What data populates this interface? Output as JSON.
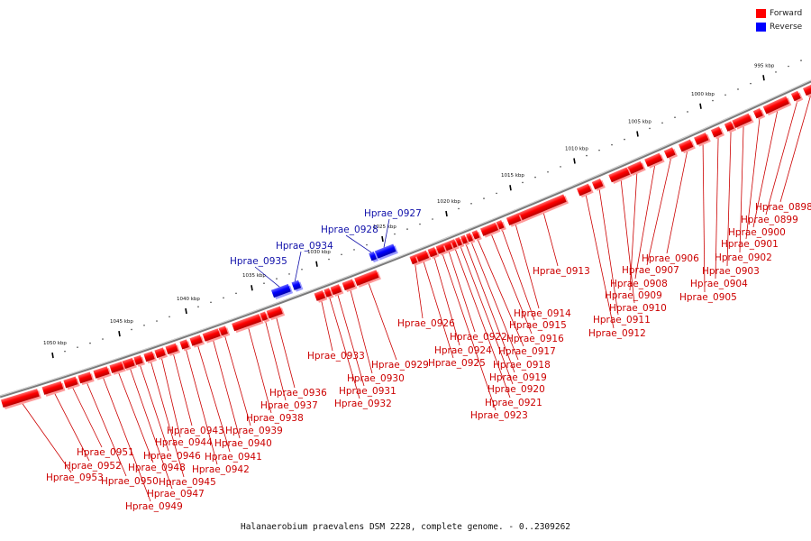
{
  "colors": {
    "forward": "#ff0000",
    "reverse": "#0000ff",
    "label_forward": "#cc0000",
    "label_reverse": "#1111aa",
    "backbone": "#808080"
  },
  "legend": [
    {
      "label": "Forward",
      "color": "#ff0000"
    },
    {
      "label": "Reverse",
      "color": "#0000ff"
    }
  ],
  "caption": "Halanaerobium praevalens DSM 2228, complete genome. - 0..2309262",
  "ticks": [
    {
      "label": "995 kbp"
    },
    {
      "label": "1000 kbp"
    },
    {
      "label": "1005 kbp"
    },
    {
      "label": "1010 kbp"
    },
    {
      "label": "1015 kbp"
    },
    {
      "label": "1020 kbp"
    },
    {
      "label": "1025 kbp"
    },
    {
      "label": "1030 kbp"
    },
    {
      "label": "1035 kbp"
    },
    {
      "label": "1040 kbp"
    },
    {
      "label": "1045 kbp"
    },
    {
      "label": "1050 kbp"
    }
  ],
  "genes": [
    {
      "name": "Hprae_0898",
      "strand": "forward"
    },
    {
      "name": "Hprae_0899",
      "strand": "forward"
    },
    {
      "name": "Hprae_0900",
      "strand": "forward"
    },
    {
      "name": "Hprae_0901",
      "strand": "forward"
    },
    {
      "name": "Hprae_0902",
      "strand": "forward"
    },
    {
      "name": "Hprae_0903",
      "strand": "forward"
    },
    {
      "name": "Hprae_0904",
      "strand": "forward"
    },
    {
      "name": "Hprae_0905",
      "strand": "forward"
    },
    {
      "name": "Hprae_0906",
      "strand": "forward"
    },
    {
      "name": "Hprae_0907",
      "strand": "forward"
    },
    {
      "name": "Hprae_0908",
      "strand": "forward"
    },
    {
      "name": "Hprae_0909",
      "strand": "forward"
    },
    {
      "name": "Hprae_0910",
      "strand": "forward"
    },
    {
      "name": "Hprae_0911",
      "strand": "forward"
    },
    {
      "name": "Hprae_0912",
      "strand": "forward"
    },
    {
      "name": "Hprae_0913",
      "strand": "forward"
    },
    {
      "name": "Hprae_0914",
      "strand": "forward"
    },
    {
      "name": "Hprae_0915",
      "strand": "forward"
    },
    {
      "name": "Hprae_0916",
      "strand": "forward"
    },
    {
      "name": "Hprae_0917",
      "strand": "forward"
    },
    {
      "name": "Hprae_0918",
      "strand": "forward"
    },
    {
      "name": "Hprae_0919",
      "strand": "forward"
    },
    {
      "name": "Hprae_0920",
      "strand": "forward"
    },
    {
      "name": "Hprae_0921",
      "strand": "forward"
    },
    {
      "name": "Hprae_0922",
      "strand": "forward"
    },
    {
      "name": "Hprae_0923",
      "strand": "forward"
    },
    {
      "name": "Hprae_0924",
      "strand": "forward"
    },
    {
      "name": "Hprae_0925",
      "strand": "forward"
    },
    {
      "name": "Hprae_0926",
      "strand": "forward"
    },
    {
      "name": "Hprae_0927",
      "strand": "reverse"
    },
    {
      "name": "Hprae_0928",
      "strand": "reverse"
    },
    {
      "name": "Hprae_0929",
      "strand": "forward"
    },
    {
      "name": "Hprae_0930",
      "strand": "forward"
    },
    {
      "name": "Hprae_0931",
      "strand": "forward"
    },
    {
      "name": "Hprae_0932",
      "strand": "forward"
    },
    {
      "name": "Hprae_0933",
      "strand": "forward"
    },
    {
      "name": "Hprae_0934",
      "strand": "reverse"
    },
    {
      "name": "Hprae_0935",
      "strand": "reverse"
    },
    {
      "name": "Hprae_0936",
      "strand": "forward"
    },
    {
      "name": "Hprae_0937",
      "strand": "forward"
    },
    {
      "name": "Hprae_0938",
      "strand": "forward"
    },
    {
      "name": "Hprae_0939",
      "strand": "forward"
    },
    {
      "name": "Hprae_0940",
      "strand": "forward"
    },
    {
      "name": "Hprae_0941",
      "strand": "forward"
    },
    {
      "name": "Hprae_0942",
      "strand": "forward"
    },
    {
      "name": "Hprae_0943",
      "strand": "forward"
    },
    {
      "name": "Hprae_0944",
      "strand": "forward"
    },
    {
      "name": "Hprae_0945",
      "strand": "forward"
    },
    {
      "name": "Hprae_0946",
      "strand": "forward"
    },
    {
      "name": "Hprae_0947",
      "strand": "forward"
    },
    {
      "name": "Hprae_0948",
      "strand": "forward"
    },
    {
      "name": "Hprae_0949",
      "strand": "forward"
    },
    {
      "name": "Hprae_0950",
      "strand": "forward"
    },
    {
      "name": "Hprae_0951",
      "strand": "forward"
    },
    {
      "name": "Hprae_0952",
      "strand": "forward"
    },
    {
      "name": "Hprae_0953",
      "strand": "forward"
    }
  ]
}
